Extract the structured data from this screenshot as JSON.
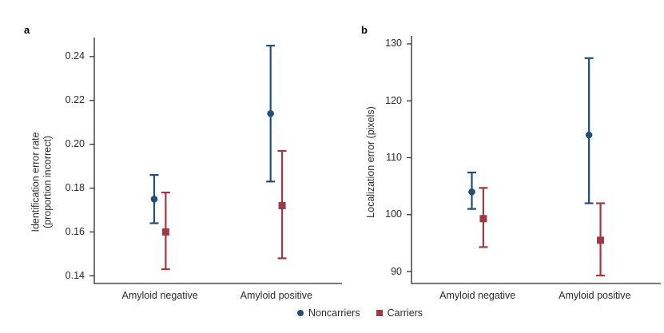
{
  "legend": [
    {
      "label": "Noncarriers",
      "marker": "circle",
      "color": "#1f4e79"
    },
    {
      "label": "Carriers",
      "marker": "square",
      "color": "#9e3a44"
    }
  ],
  "chart_data": [
    {
      "type": "scatter",
      "panel_label": "a",
      "ylabel": "Identification error rate\n(proportion incorrect)",
      "xlabel": "",
      "categories": [
        "Amyloid negative",
        "Amyloid positive"
      ],
      "ylim": [
        0.1365,
        0.2487
      ],
      "yticks": [
        0.14,
        0.16,
        0.18,
        0.2,
        0.22,
        0.24
      ],
      "ytick_labels": [
        "0.14",
        "0.16",
        "0.18",
        "0.20",
        "0.22",
        "0.24"
      ],
      "grid": false,
      "legend_position": "bottom-center",
      "series": [
        {
          "name": "Noncarriers",
          "marker": "circle",
          "color": "#1f4e79",
          "values": [
            0.175,
            0.214
          ],
          "ci_low": [
            0.164,
            0.183
          ],
          "ci_high": [
            0.186,
            0.245
          ]
        },
        {
          "name": "Carriers",
          "marker": "square",
          "color": "#9e3a44",
          "values": [
            0.16,
            0.172
          ],
          "ci_low": [
            0.143,
            0.148
          ],
          "ci_high": [
            0.178,
            0.197
          ]
        }
      ]
    },
    {
      "type": "scatter",
      "panel_label": "b",
      "ylabel": "Localization error (pixels)",
      "xlabel": "",
      "categories": [
        "Amyloid negative",
        "Amyloid positive"
      ],
      "ylim": [
        87.9,
        131.4
      ],
      "yticks": [
        90,
        100,
        110,
        120,
        130
      ],
      "ytick_labels": [
        "90",
        "100",
        "110",
        "120",
        "130"
      ],
      "grid": false,
      "legend_position": "bottom-center",
      "series": [
        {
          "name": "Noncarriers",
          "marker": "circle",
          "color": "#1f4e79",
          "values": [
            104,
            114
          ],
          "ci_low": [
            101,
            102
          ],
          "ci_high": [
            107.4,
            127.5
          ]
        },
        {
          "name": "Carriers",
          "marker": "square",
          "color": "#9e3a44",
          "values": [
            99.3,
            95.5
          ],
          "ci_low": [
            94.3,
            89.3
          ],
          "ci_high": [
            104.7,
            102
          ]
        }
      ]
    }
  ]
}
